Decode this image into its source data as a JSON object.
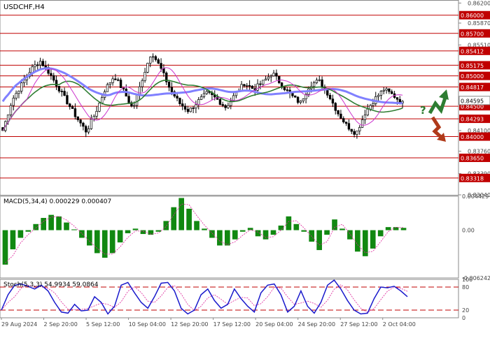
{
  "chart_data": {
    "type": "candlestick",
    "symbol": "USDCHF,H4",
    "price_axis": {
      "ticks": [
        "0.86200",
        "0.85870",
        "0.85510",
        "0.85180",
        "0.84850",
        "0.84595",
        "0.84293",
        "0.84100",
        "0.83760",
        "0.83390",
        "0.83040"
      ],
      "range": [
        0.8304,
        0.8625
      ]
    },
    "levels": [
      {
        "label": "0.86000",
        "value": 0.86
      },
      {
        "label": "0.85700",
        "value": 0.857
      },
      {
        "label": "0.85412",
        "value": 0.85412
      },
      {
        "label": "0.85175",
        "value": 0.85175
      },
      {
        "label": "0.85000",
        "value": 0.85
      },
      {
        "label": "0.84817",
        "value": 0.84817
      },
      {
        "label": "0.84500",
        "value": 0.845
      },
      {
        "label": "0.84293",
        "value": 0.84293
      },
      {
        "label": "0.84000",
        "value": 0.84
      },
      {
        "label": "0.83650",
        "value": 0.8365
      },
      {
        "label": "0.83318",
        "value": 0.83318
      }
    ],
    "current_price_label": "0.84595",
    "forecast_mark": "?",
    "time_axis": [
      "29 Aug 2024",
      "2 Sep 20:00",
      "5 Sep 12:00",
      "10 Sep 04:00",
      "12 Sep 20:00",
      "17 Sep 12:00",
      "20 Sep 04:00",
      "24 Sep 20:00",
      "27 Sep 12:00",
      "2 Oct 04:00"
    ],
    "close_profile": [
      0.841,
      0.846,
      0.8485,
      0.851,
      0.8525,
      0.8505,
      0.848,
      0.8455,
      0.843,
      0.8408,
      0.844,
      0.8478,
      0.85,
      0.8475,
      0.8445,
      0.8495,
      0.854,
      0.8512,
      0.8478,
      0.8455,
      0.8442,
      0.8458,
      0.8472,
      0.8462,
      0.8448,
      0.847,
      0.8488,
      0.8478,
      0.849,
      0.8505,
      0.8485,
      0.8468,
      0.8455,
      0.8485,
      0.8492,
      0.847,
      0.844,
      0.8418,
      0.8405,
      0.844,
      0.8462,
      0.8478,
      0.8468,
      0.8455
    ],
    "macd": {
      "label": "MACD(5,34,4)",
      "values_text": "0.000229 0.000407",
      "ticks": [
        "0.004429",
        "0.00",
        "-0.006242"
      ],
      "range": [
        -0.006242,
        0.004429
      ],
      "histogram": [
        -0.0045,
        -0.0025,
        -0.001,
        -0.0002,
        0.0008,
        0.0016,
        0.002,
        0.0018,
        0.001,
        0.0001,
        -0.001,
        -0.002,
        -0.003,
        -0.0036,
        -0.003,
        -0.0016,
        -0.0004,
        0.0002,
        -0.0005,
        -0.0006,
        -0.0002,
        0.0012,
        0.003,
        0.0042,
        0.0028,
        0.0012,
        0.0002,
        -0.001,
        -0.002,
        -0.002,
        -0.0012,
        -0.0002,
        0.0003,
        -0.0008,
        -0.0012,
        -0.0006,
        0.0006,
        0.0018,
        0.0008,
        -0.0002,
        -0.0015,
        -0.0026,
        -0.0006,
        0.0014,
        0.0002,
        -0.0012,
        -0.0028,
        -0.0034,
        -0.0024,
        -0.0008,
        0.0004,
        0.0004,
        0.0003
      ]
    },
    "stoch": {
      "label": "Stoch(5,3,3)",
      "values_text": "54.9934 59.0864",
      "ticks": [
        "100",
        "80",
        "20",
        "0"
      ],
      "range": [
        0,
        100
      ],
      "levels": [
        80,
        20
      ],
      "k": [
        20,
        60,
        85,
        88,
        82,
        75,
        85,
        70,
        40,
        15,
        12,
        35,
        18,
        20,
        55,
        40,
        10,
        30,
        85,
        92,
        65,
        40,
        25,
        55,
        90,
        92,
        70,
        25,
        10,
        20,
        60,
        75,
        45,
        25,
        35,
        75,
        50,
        30,
        15,
        65,
        85,
        88,
        60,
        15,
        30,
        70,
        30,
        12,
        40,
        85,
        98,
        75,
        45,
        20,
        10,
        12,
        50,
        80,
        78,
        82,
        70,
        55
      ]
    },
    "colors": {
      "bull_candle": "#ffffff",
      "bear_candle": "#000000",
      "sma_slow": "#8080ff",
      "sma_mid": "#2e7d32",
      "sma_fast": "#cc33cc",
      "level_line": "#c00000",
      "level_label_bg": "#c00000",
      "macd_bar": "#118811",
      "macd_signal": "#dd2299",
      "stoch_k": "#1a1acc",
      "stoch_d": "#dd2299",
      "arrow_up": "#2e7d32",
      "arrow_down": "#b03a1a"
    }
  }
}
